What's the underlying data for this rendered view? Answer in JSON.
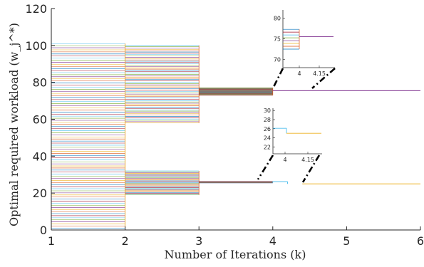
{
  "chart_data": {
    "type": "line",
    "subtype": "step",
    "xlabel": "Number of Iterations (k)",
    "ylabel": "Optimal required workload (w_j^*)",
    "xlim": [
      1,
      6
    ],
    "ylim": [
      0,
      120
    ],
    "x_ticks": [
      1,
      2,
      3,
      4,
      5,
      6
    ],
    "y_ticks": [
      0,
      20,
      40,
      60,
      80,
      100,
      120
    ],
    "grid": false,
    "legend": "none",
    "iteration_ranges": [
      {
        "from_k": 1,
        "to_k": 2,
        "min": 1,
        "max": 101
      },
      {
        "from_k": 2,
        "to_k": 3,
        "min": 58,
        "max": 100,
        "group": "upper"
      },
      {
        "from_k": 2,
        "to_k": 3,
        "min": 19,
        "max": 32,
        "group": "lower"
      },
      {
        "from_k": 3,
        "to_k": 4,
        "min": 73,
        "max": 77,
        "group": "upper"
      },
      {
        "from_k": 3,
        "to_k": 4,
        "min": 25.5,
        "max": 26.3,
        "group": "lower"
      }
    ],
    "converged": [
      {
        "group": "upper",
        "value": 75.5,
        "from_k": 4,
        "to_k": 6
      },
      {
        "group": "lower",
        "value": 25.0,
        "from_k": 4.4,
        "to_k": 6
      }
    ],
    "insets": [
      {
        "name": "upper-zoom",
        "x_ticks_labels": [
          "4",
          "4.15"
        ],
        "y_ticks": [
          70,
          75,
          80
        ],
        "ylim": [
          68,
          82
        ],
        "converged_value": 75.5
      },
      {
        "name": "lower-zoom",
        "x_ticks_labels": [
          "4",
          "4.15"
        ],
        "y_ticks": [
          22,
          24,
          26,
          28,
          30
        ],
        "ylim": [
          20.5,
          30.5
        ],
        "converged_value": 25.0
      }
    ]
  }
}
